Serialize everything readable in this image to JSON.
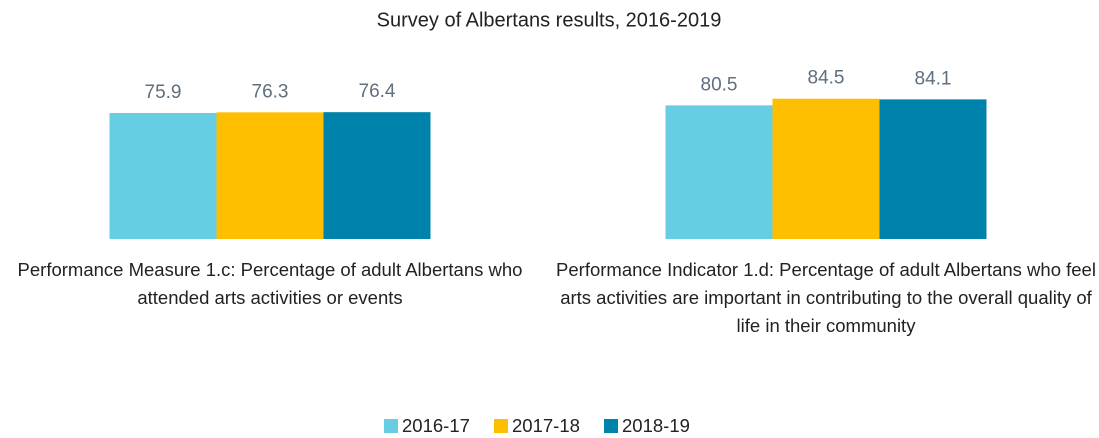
{
  "chart_data": {
    "type": "bar",
    "title": "Survey of Albertans results, 2016-2019",
    "categories": [
      "Performance Measure 1.c: Percentage of adult Albertans who attended arts activities or events",
      "Performance Indicator 1.d: Percentage of adult Albertans who feel arts activities are important in contributing to the overall quality of life in their community"
    ],
    "series": [
      {
        "name": "2016-17",
        "color": "#67cde3",
        "values": [
          75.9,
          80.5
        ]
      },
      {
        "name": "2017-18",
        "color": "#fdbf00",
        "values": [
          76.3,
          84.5
        ]
      },
      {
        "name": "2018-19",
        "color": "#0083aa",
        "values": [
          76.4,
          84.1
        ]
      }
    ],
    "ylim": [
      0,
      100
    ],
    "legend": "bottom"
  }
}
